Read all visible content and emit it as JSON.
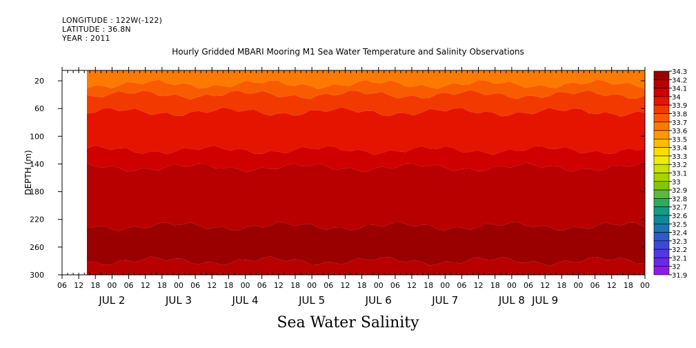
{
  "header": {
    "longitude": "LONGITUDE : 122W(-122)",
    "latitude": "LATITUDE : 36.8N",
    "year": "YEAR : 2011"
  },
  "chart_data": {
    "type": "heatmap",
    "title": "Hourly Gridded MBARI Mooring M1 Sea Water Temperature and Salinity Observations",
    "xlabel": "Sea Water Salinity",
    "ylabel": "DEPTH (m)",
    "y_ticks": [
      20,
      60,
      100,
      140,
      180,
      220,
      260,
      300
    ],
    "ylim": [
      300,
      5
    ],
    "x_hour_ticks": [
      "06",
      "12",
      "18",
      "00",
      "06",
      "12",
      "18",
      "00",
      "06",
      "12",
      "18",
      "00",
      "06",
      "12",
      "18",
      "00",
      "06",
      "12",
      "18",
      "00",
      "06",
      "12",
      "18",
      "00",
      "06",
      "12",
      "18",
      "00",
      "06",
      "12",
      "18",
      "00",
      "06",
      "12",
      "18",
      "00"
    ],
    "x_day_labels": [
      "JUL  2",
      "JUL  3",
      "JUL  4",
      "JUL  5",
      "JUL  6",
      "JUL  7",
      "JUL  8",
      "JUL  9"
    ],
    "data_start_hour": 12,
    "x_range_hours": [
      0,
      210
    ],
    "colorbar": {
      "levels": [
        "34.3",
        "34.2",
        "34.1",
        "34",
        "33.9",
        "33.8",
        "33.7",
        "33.6",
        "33.5",
        "33.4",
        "33.3",
        "33.2",
        "33.1",
        "33",
        "32.9",
        "32.8",
        "32.7",
        "32.6",
        "32.5",
        "32.4",
        "32.3",
        "32.2",
        "32.1",
        "32",
        "31.9"
      ],
      "colors": [
        "#9b0000",
        "#b80000",
        "#d00000",
        "#e51400",
        "#f23a00",
        "#f95c00",
        "#fc7a00",
        "#ff9a00",
        "#ffbb00",
        "#ffdd00",
        "#eeee00",
        "#c8e400",
        "#a6d400",
        "#82c800",
        "#5cb840",
        "#30a860",
        "#149c80",
        "#108898",
        "#1c74b0",
        "#2c5cc8",
        "#3c48dc",
        "#5038e4",
        "#6c28e8",
        "#8c1cec",
        "#b000f0"
      ]
    },
    "depth_bands": [
      {
        "from": 5,
        "to": 25,
        "value": 33.7
      },
      {
        "from": 25,
        "to": 40,
        "value": 33.8
      },
      {
        "from": 40,
        "to": 65,
        "value": 33.9
      },
      {
        "from": 65,
        "to": 120,
        "value": 34.0
      },
      {
        "from": 120,
        "to": 145,
        "value": 34.1
      },
      {
        "from": 145,
        "to": 230,
        "value": 34.2
      },
      {
        "from": 230,
        "to": 280,
        "value": 34.3
      },
      {
        "from": 280,
        "to": 300,
        "value": 34.2
      }
    ]
  }
}
